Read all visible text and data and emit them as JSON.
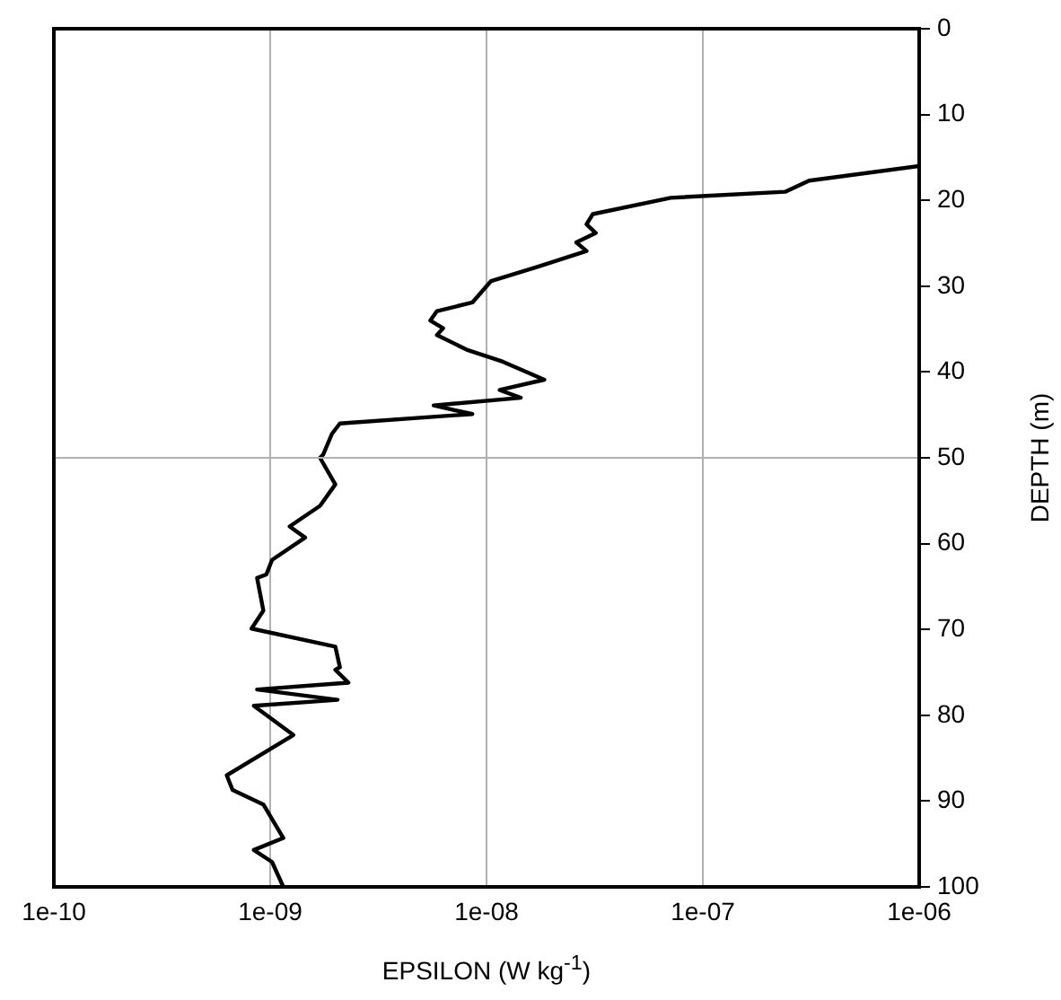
{
  "chart_data": {
    "type": "line",
    "xlabel": "EPSILON (W kg$^{-1}$)",
    "ylabel": "DEPTH (m)",
    "log": "x",
    "grid": "x",
    "legend": false,
    "marker": "none",
    "line_style": "solid",
    "xlim": [
      1e-10,
      1e-06
    ],
    "xticks": [
      {
        "value": 1e-10,
        "label": "1e-10"
      },
      {
        "value": 1e-09,
        "label": "1e-09"
      },
      {
        "value": 1e-08,
        "label": "1e-08"
      },
      {
        "value": 1e-07,
        "label": "1e-07"
      },
      {
        "value": 1e-06,
        "label": "1e-06"
      }
    ],
    "ylim": [
      100,
      0
    ],
    "yticks": [
      0,
      10,
      20,
      30,
      40,
      50,
      60,
      70,
      80,
      90,
      100
    ],
    "ref_lines": [
      {
        "axis": "y",
        "value": 50,
        "color": "#b0b0b0"
      }
    ],
    "series": [
      {
        "color": "#000000",
        "x": [
          1e-06,
          3.1e-07,
          2.4e-07,
          7.1e-08,
          3.1e-08,
          2.9e-08,
          3.2e-08,
          2.6e-08,
          2.9e-08,
          1.74e-08,
          1.05e-08,
          8.6e-09,
          5.9e-09,
          5.5e-09,
          6.3e-09,
          5.9e-09,
          8.1e-09,
          1.19e-08,
          1.85e-08,
          1.15e-08,
          1.44e-08,
          5.7e-09,
          8.6e-09,
          2.1e-09,
          1.93e-09,
          1.76e-09,
          1.7e-09,
          2e-09,
          1.7e-09,
          1.23e-09,
          1.45e-09,
          1.02e-09,
          9.6e-10,
          8.7e-10,
          9.3e-10,
          8.2e-10,
          2e-09,
          2.1e-09,
          2e-09,
          2.3e-09,
          8.7e-10,
          2.05e-09,
          8.4e-10,
          1.28e-09,
          6.3e-10,
          6.7e-10,
          9.3e-10,
          1.15e-09,
          8.4e-10,
          1.02e-09,
          1.15e-09
        ],
        "values": [
          16,
          17.7,
          19,
          19.7,
          21.6,
          22.8,
          23.8,
          24.9,
          25.9,
          27.7,
          29.4,
          31.9,
          32.9,
          34,
          34.9,
          35.7,
          37.4,
          38.8,
          40.9,
          42.1,
          43,
          43.9,
          44.9,
          46,
          47.2,
          49.6,
          50,
          53.1,
          55.6,
          58,
          59.3,
          61.9,
          63.6,
          64,
          67.8,
          69.9,
          72,
          74.4,
          74.7,
          76.2,
          77,
          78.2,
          78.9,
          82.3,
          87,
          88.7,
          90.4,
          94.3,
          95.7,
          97.1,
          100
        ]
      }
    ]
  }
}
